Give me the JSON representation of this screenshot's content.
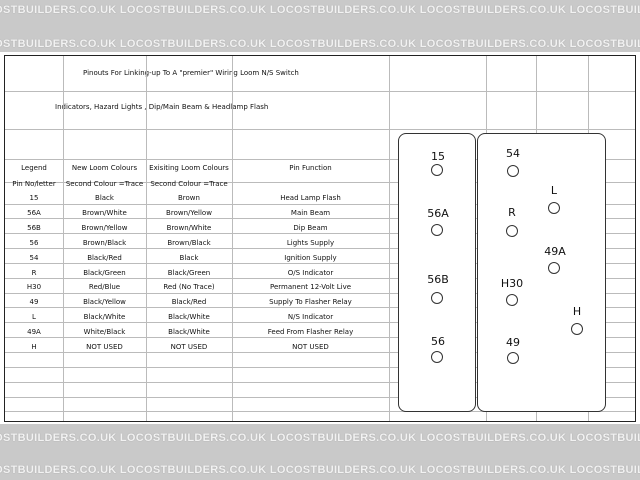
{
  "watermark": "LOCOSTBUILDERS.CO.UK",
  "title": "Pinouts For Linking-up To A \"premier\" Wiring Loom N/S Switch",
  "subtitle": "Indicators, Hazard Lights , Dip/Main Beam & Headlamp Flash",
  "table": {
    "headers": [
      "Legend",
      "New Loom Colours",
      "Exisiting Loom Colours",
      "Pin Function"
    ],
    "subheaders": [
      "Pin No/letter",
      "Second Colour =Trace",
      "Second Colour =Trace",
      ""
    ],
    "rows": [
      [
        "15",
        "Black",
        "Brown",
        "Head Lamp Flash"
      ],
      [
        "56A",
        "Brown/White",
        "Brown/Yellow",
        "Main Beam"
      ],
      [
        "56B",
        "Brown/Yellow",
        "Brown/White",
        "Dip Beam"
      ],
      [
        "56",
        "Brown/Black",
        "Brown/Black",
        "Lights Supply"
      ],
      [
        "54",
        "Black/Red",
        "Black",
        "Ignition Supply"
      ],
      [
        "R",
        "Black/Green",
        "Black/Green",
        "O/S Indicator"
      ],
      [
        "H30",
        "Red/Blue",
        "Red (No Trace)",
        "Permanent 12-Volt Live"
      ],
      [
        "49",
        "Black/Yellow",
        "Black/Red",
        "Supply To Flasher Relay"
      ],
      [
        "L",
        "Black/White",
        "Black/White",
        "N/S Indicator"
      ],
      [
        "49A",
        "White/Black",
        "Black/White",
        "Feed From Flasher Relay"
      ],
      [
        "H",
        "NOT USED",
        "NOT USED",
        "NOT USED"
      ]
    ]
  },
  "switch": {
    "left_pins": [
      "15",
      "56A",
      "56B",
      "56"
    ],
    "right_pins": [
      "54",
      "L",
      "R",
      "49A",
      "H30",
      "H",
      "49"
    ]
  }
}
